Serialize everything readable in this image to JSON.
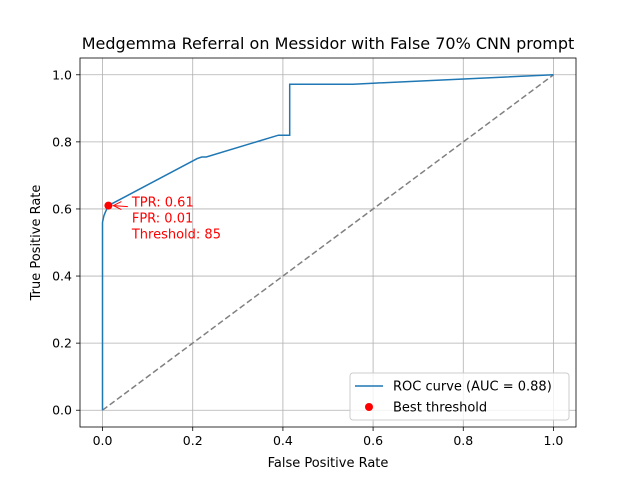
{
  "chart_data": {
    "type": "line",
    "title": "Medgemma Referral on Messidor with False 70% CNN prompt",
    "xlabel": "False Positive Rate",
    "ylabel": "True Positive Rate",
    "xlim": [
      -0.05,
      1.05
    ],
    "ylim": [
      -0.05,
      1.05
    ],
    "xticks": [
      "0.0",
      "0.2",
      "0.4",
      "0.6",
      "0.8",
      "1.0"
    ],
    "yticks": [
      "0.0",
      "0.2",
      "0.4",
      "0.6",
      "0.8",
      "1.0"
    ],
    "grid": true,
    "legend_position": "lower-right",
    "series": [
      {
        "name": "ROC curve (AUC = 0.88)",
        "color": "#1f77b4",
        "style": "solid",
        "x": [
          0.0,
          0.0,
          0.003,
          0.006,
          0.013,
          0.21,
          0.22,
          0.23,
          0.39,
          0.415,
          0.415,
          0.555,
          0.6,
          1.0
        ],
        "y": [
          0.0,
          0.56,
          0.58,
          0.59,
          0.61,
          0.75,
          0.755,
          0.755,
          0.82,
          0.82,
          0.972,
          0.972,
          0.975,
          1.0
        ]
      },
      {
        "name": "",
        "color": "#808080",
        "style": "dashed",
        "x": [
          0.0,
          1.0
        ],
        "y": [
          0.0,
          1.0
        ]
      },
      {
        "name": "Best threshold",
        "color": "#ff0000",
        "style": "marker",
        "x": [
          0.013
        ],
        "y": [
          0.61
        ]
      }
    ],
    "annotation": {
      "lines": [
        "TPR: 0.61",
        "FPR: 0.01",
        "Threshold: 85"
      ],
      "color": "#ff0000",
      "point": [
        0.013,
        0.61
      ],
      "text_anchor": [
        0.065,
        0.61
      ]
    }
  }
}
